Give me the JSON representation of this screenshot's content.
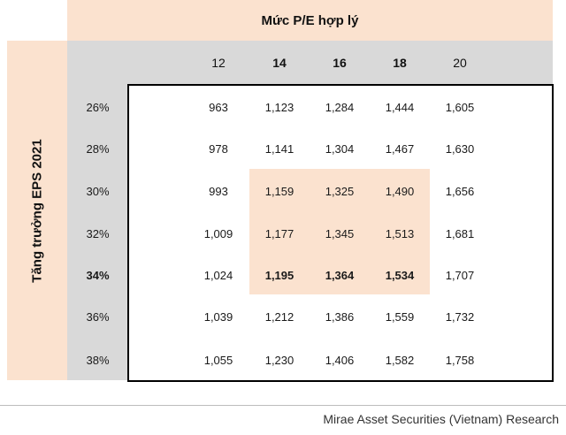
{
  "title": "Mức P/E hợp lý",
  "side_label": "Tăng trưởng EPS 2021",
  "columns": [
    {
      "label": "12",
      "bold": false
    },
    {
      "label": "14",
      "bold": true
    },
    {
      "label": "16",
      "bold": true
    },
    {
      "label": "18",
      "bold": true
    },
    {
      "label": "20",
      "bold": false
    }
  ],
  "rows": [
    {
      "label": "26%",
      "bold": false,
      "values": [
        "963",
        "1,123",
        "1,284",
        "1,444",
        "1,605"
      ]
    },
    {
      "label": "28%",
      "bold": false,
      "values": [
        "978",
        "1,141",
        "1,304",
        "1,467",
        "1,630"
      ]
    },
    {
      "label": "30%",
      "bold": false,
      "values": [
        "993",
        "1,159",
        "1,325",
        "1,490",
        "1,656"
      ]
    },
    {
      "label": "32%",
      "bold": false,
      "values": [
        "1,009",
        "1,177",
        "1,345",
        "1,513",
        "1,681"
      ]
    },
    {
      "label": "34%",
      "bold": true,
      "values": [
        "1,024",
        "1,195",
        "1,364",
        "1,534",
        "1,707"
      ]
    },
    {
      "label": "36%",
      "bold": false,
      "values": [
        "1,039",
        "1,212",
        "1,386",
        "1,559",
        "1,732"
      ]
    },
    {
      "label": "38%",
      "bold": false,
      "values": [
        "1,055",
        "1,230",
        "1,406",
        "1,582",
        "1,758"
      ]
    }
  ],
  "bold_cells_row": 4,
  "bold_cells_cols": [
    1,
    2,
    3
  ],
  "source": "Mirae Asset Securities (Vietnam) Research",
  "colors": {
    "header_fill": "#fbe2cf",
    "gray_fill": "#d9d9d9"
  }
}
